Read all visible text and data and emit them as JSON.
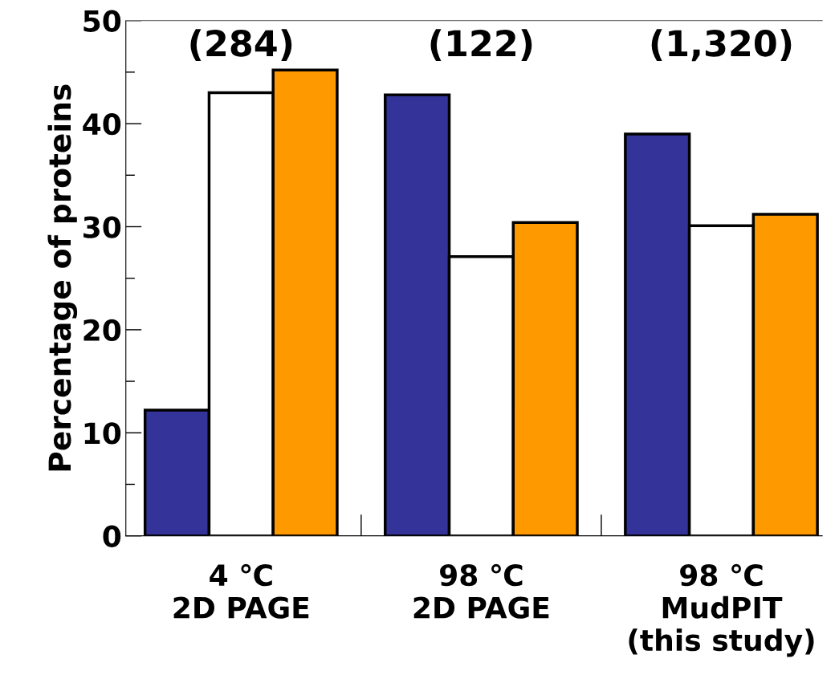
{
  "chart_data": {
    "type": "bar",
    "ylabel": "Percentage of proteins",
    "categories": [
      "4 ℃\n2D PAGE",
      "98 ℃\n2D PAGE",
      "98 ℃\nMudPIT\n(this study)"
    ],
    "series": [
      {
        "color": "#333399",
        "values": [
          12.2,
          42.8,
          39.0
        ]
      },
      {
        "color": "#ffffff",
        "values": [
          43.0,
          27.1,
          30.1
        ]
      },
      {
        "color": "#ff9900",
        "values": [
          45.2,
          30.4,
          31.2
        ]
      }
    ],
    "ylim": [
      0,
      50
    ],
    "yticks": [
      0,
      10,
      20,
      30,
      40,
      50
    ],
    "annotations": [
      "(284)",
      "(122)",
      "(1,320)"
    ],
    "grid": false,
    "legend": false
  }
}
